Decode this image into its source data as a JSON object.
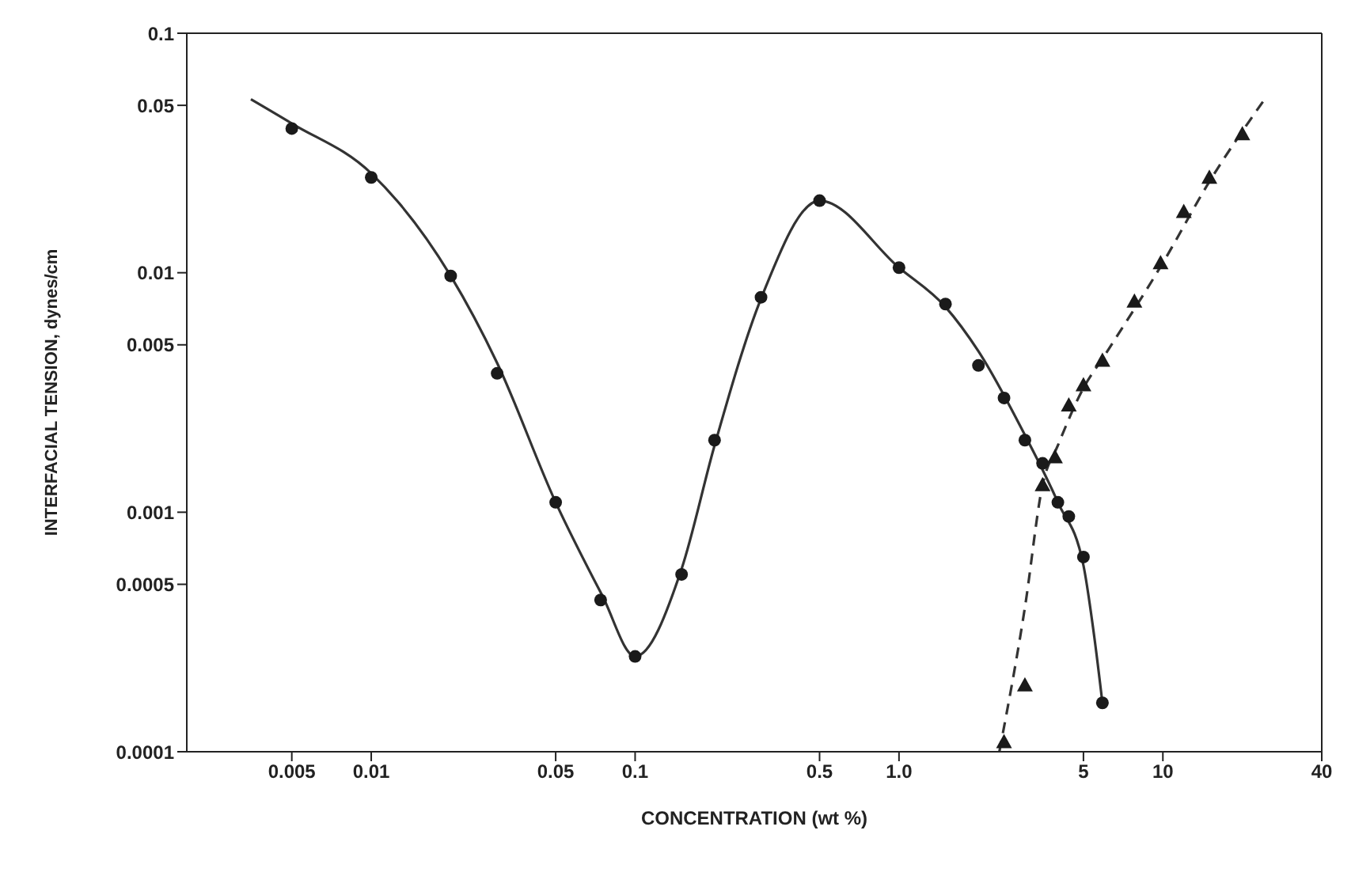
{
  "chart_data": {
    "type": "scatter",
    "xlabel": "CONCENTRATION (wt %)",
    "ylabel": "INTERFACIAL TENSION, dynes/cm",
    "log": "xy",
    "grid": false,
    "xlim": [
      0.002,
      40
    ],
    "xticks": [
      0.005,
      0.01,
      0.05,
      0.1,
      0.5,
      {
        "value": 1,
        "label": "1.0"
      },
      5,
      10,
      40
    ],
    "ylim": [
      0.0001,
      0.1
    ],
    "yticks": [
      0.0001,
      0.0005,
      0.001,
      0.005,
      0.01,
      0.05,
      0.1
    ],
    "series": [
      {
        "type": "scatter",
        "marker": "circle",
        "color": "#1a1a1a",
        "x": [
          0.005,
          0.01,
          0.02,
          0.03,
          0.05,
          0.074,
          0.1,
          0.15,
          0.2,
          0.3,
          0.5,
          1.0,
          1.5,
          2,
          2.5,
          3,
          3.5,
          4,
          4.4,
          5,
          5.9
        ],
        "values": [
          0.04,
          0.025,
          0.0097,
          0.0038,
          0.0011,
          0.00043,
          0.00025,
          0.00055,
          0.002,
          0.0079,
          0.02,
          0.0105,
          0.0074,
          0.0041,
          0.003,
          0.002,
          0.0016,
          0.0011,
          0.00096,
          0.00065,
          0.00016
        ]
      },
      {
        "type": "scatter",
        "marker": "triangle",
        "color": "#1a1a1a",
        "x": [
          2.5,
          3,
          3.5,
          3.9,
          4.4,
          5,
          5.9,
          7.8,
          9.8,
          12,
          15,
          20
        ],
        "values": [
          0.00011,
          0.00019,
          0.0013,
          0.0017,
          0.0028,
          0.0034,
          0.0043,
          0.0076,
          0.011,
          0.018,
          0.025,
          0.038
        ]
      },
      {
        "type": "line",
        "line_style": "solid",
        "color": "#333333",
        "x": [
          0.0035,
          0.005,
          0.01,
          0.02,
          0.03,
          0.05,
          0.075,
          0.1,
          0.15,
          0.2,
          0.3,
          0.5,
          1.0,
          1.5,
          2,
          3,
          4,
          5,
          5.5,
          5.9
        ],
        "values": [
          0.053,
          0.042,
          0.026,
          0.0097,
          0.0042,
          0.0011,
          0.00045,
          0.00025,
          0.00058,
          0.0019,
          0.0078,
          0.02,
          0.0105,
          0.0072,
          0.0047,
          0.0021,
          0.0011,
          0.0006,
          0.0003,
          0.00016
        ]
      },
      {
        "type": "line",
        "line_style": "dashed",
        "color": "#333333",
        "x": [
          2.4,
          3,
          3.5,
          4,
          5,
          6,
          10,
          15,
          24
        ],
        "values": [
          0.0001,
          0.0004,
          0.0013,
          0.0019,
          0.0033,
          0.0045,
          0.011,
          0.024,
          0.052
        ]
      }
    ]
  }
}
